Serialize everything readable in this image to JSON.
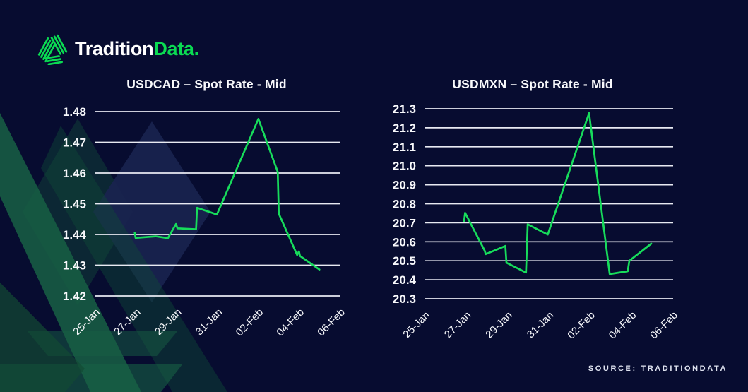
{
  "logo": {
    "brand_first": "Tradition",
    "brand_second": "Data.",
    "icon": "traditiondata-mark-icon"
  },
  "source": {
    "label": "SOURCE: TRADITIONDATA"
  },
  "colors": {
    "background": "#070C30",
    "line_green": "#17DC5B",
    "logo_green": "#0ADB52",
    "gridline": "#E8EAF2",
    "label_text": "#F7F8FB",
    "watermark_green": "#176044",
    "watermark_blue": "#1A2450"
  },
  "chart_data": [
    {
      "type": "line",
      "title": "USDCAD – Spot Rate - Mid",
      "xlabel": "",
      "ylabel": "",
      "grid": true,
      "legend": "none",
      "ylim": [
        1.42,
        1.48
      ],
      "y_tick_labels": [
        "1.48",
        "1.47",
        "1.46",
        "1.45",
        "1.44",
        "1.43",
        "1.42"
      ],
      "x_domain": [
        0,
        12
      ],
      "x_tick_days": [
        0,
        2,
        4,
        6,
        8,
        10,
        12
      ],
      "x_tick_labels": [
        "25-Jan",
        "27-Jan",
        "29-Jan",
        "31-Jan",
        "02-Feb",
        "04-Feb",
        "06-Feb"
      ],
      "series": [
        {
          "name": "USDCAD Spot Mid",
          "color": "#17DC5B",
          "points": [
            [
              1.93,
              1.4406
            ],
            [
              1.97,
              1.4389
            ],
            [
              2.95,
              1.4394
            ],
            [
              3.55,
              1.4388
            ],
            [
              3.95,
              1.4434
            ],
            [
              4.02,
              1.442
            ],
            [
              4.93,
              1.4417
            ],
            [
              4.98,
              1.4487
            ],
            [
              5.95,
              1.4465
            ],
            [
              7.98,
              1.4776
            ],
            [
              8.93,
              1.4604
            ],
            [
              8.98,
              1.4468
            ],
            [
              9.88,
              1.4333
            ],
            [
              9.97,
              1.4345
            ],
            [
              10.02,
              1.433
            ],
            [
              10.97,
              1.4286
            ]
          ]
        }
      ]
    },
    {
      "type": "line",
      "title": "USDMXN – Spot Rate - Mid",
      "xlabel": "",
      "ylabel": "",
      "grid": true,
      "legend": "none",
      "ylim": [
        20.3,
        21.3
      ],
      "y_tick_labels": [
        "21.3",
        "21.2",
        "21.1",
        "21.0",
        "20.9",
        "20.8",
        "20.7",
        "20.6",
        "20.5",
        "20.4",
        "20.3"
      ],
      "x_domain": [
        0,
        12
      ],
      "x_tick_days": [
        0,
        2,
        4,
        6,
        8,
        10,
        12
      ],
      "x_tick_labels": [
        "25-Jan",
        "27-Jan",
        "29-Jan",
        "31-Jan",
        "02-Feb",
        "04-Feb",
        "06-Feb"
      ],
      "series": [
        {
          "name": "USDMXN Spot Mid",
          "color": "#17DC5B",
          "points": [
            [
              1.88,
              20.708
            ],
            [
              1.93,
              20.752
            ],
            [
              2.88,
              20.553
            ],
            [
              2.93,
              20.535
            ],
            [
              3.88,
              20.578
            ],
            [
              3.93,
              20.49
            ],
            [
              4.88,
              20.438
            ],
            [
              4.96,
              20.692
            ],
            [
              5.93,
              20.638
            ],
            [
              7.93,
              21.277
            ],
            [
              8.93,
              20.43
            ],
            [
              9.8,
              20.445
            ],
            [
              9.88,
              20.5
            ],
            [
              10.94,
              20.59
            ]
          ]
        }
      ]
    }
  ]
}
